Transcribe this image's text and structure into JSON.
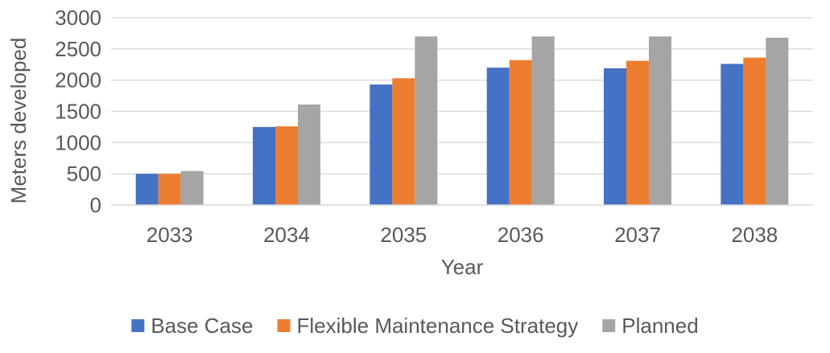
{
  "chart_data": {
    "type": "bar",
    "title": "",
    "xlabel": "Year",
    "ylabel": "Meters developed",
    "categories": [
      "2033",
      "2034",
      "2035",
      "2036",
      "2037",
      "2038"
    ],
    "ylim": [
      0,
      3000
    ],
    "yticks": [
      0,
      500,
      1000,
      1500,
      2000,
      2500,
      3000
    ],
    "grid": true,
    "legend_position": "bottom",
    "series": [
      {
        "name": "Base Case",
        "color": "#4472C4",
        "values": [
          500,
          1250,
          1930,
          2200,
          2190,
          2260
        ]
      },
      {
        "name": "Flexible Maintenance Strategy",
        "color": "#ED7D31",
        "values": [
          500,
          1260,
          2030,
          2320,
          2310,
          2360
        ]
      },
      {
        "name": "Planned",
        "color": "#A5A5A5",
        "values": [
          545,
          1610,
          2700,
          2700,
          2700,
          2680
        ]
      }
    ]
  }
}
